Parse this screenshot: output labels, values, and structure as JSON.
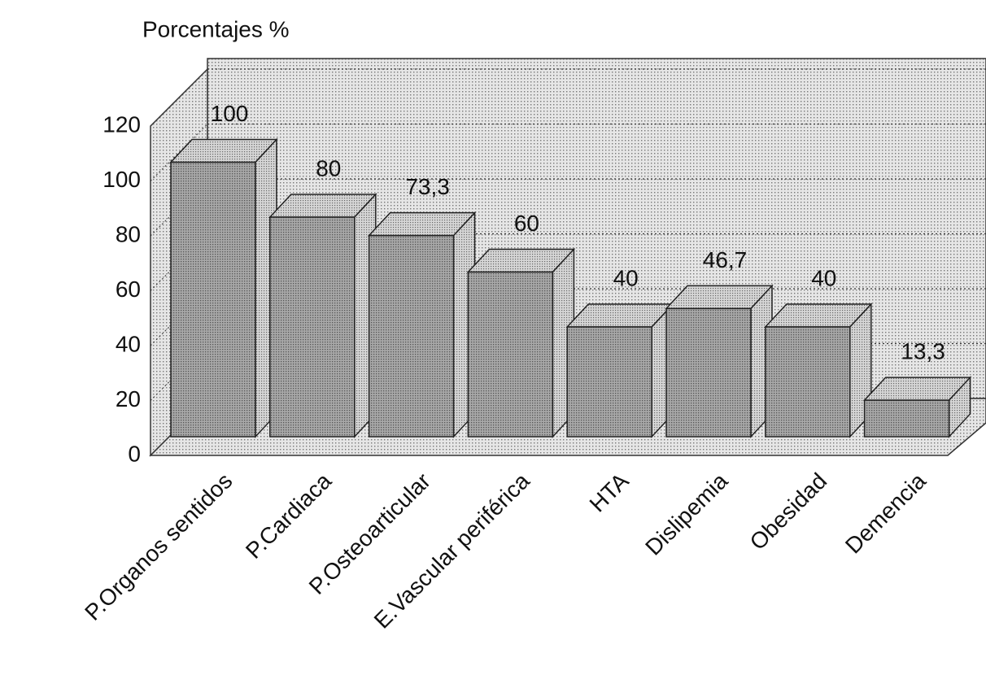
{
  "chart_data": {
    "type": "bar",
    "y_label": "Porcentajes %",
    "categories": [
      "P.Organos sentidos",
      "P.Cardiaca",
      "P.Osteoarticular",
      "E.Vascular periférica",
      "HTA",
      "Dislipemia",
      "Obesidad",
      "Demencia"
    ],
    "values": [
      100,
      80,
      73.3,
      60,
      40,
      46.7,
      40,
      13.3
    ],
    "value_labels": [
      "100",
      "80",
      "73,3",
      "60",
      "40",
      "46,7",
      "40",
      "13,3"
    ],
    "color": "#9a9a9a",
    "ylim": [
      0,
      120
    ],
    "yticks": [
      0,
      20,
      40,
      60,
      80,
      100,
      120
    ],
    "grid": true
  }
}
